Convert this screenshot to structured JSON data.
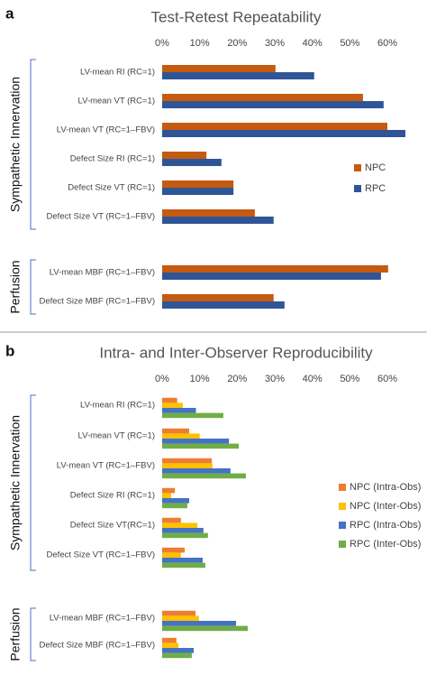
{
  "chart_data": [
    {
      "type": "hbar",
      "panel": "a",
      "title": "Test-Retest Repeatability",
      "categories": [
        "LV-mean RI (RC=1)",
        "LV-mean VT (RC=1)",
        "LV-mean VT (RC=1–FBV)",
        "Defect Size RI (RC=1)",
        "Defect Size VT (RC=1)",
        "Defect Size VT (RC=1–FBV)",
        "LV-mean MBF (RC=1–FBV)",
        "Defect Size MBF (RC=1–FBV)"
      ],
      "groups": [
        {
          "name": "Sympathetic Innervation",
          "size": 6
        },
        {
          "name": "Perfusion",
          "size": 2
        }
      ],
      "series": [
        {
          "name": "NPC",
          "color": "#c55a11",
          "values": [
            30.2,
            53.5,
            60,
            11.8,
            19,
            24.7,
            60.2,
            29.7
          ]
        },
        {
          "name": "RPC",
          "color": "#2f5597",
          "values": [
            40.5,
            59,
            64.8,
            15.8,
            19,
            29.7,
            58.3,
            32.6
          ]
        }
      ],
      "xlim": [
        0,
        66
      ],
      "xticks": [
        {
          "value": 0,
          "label": "0%"
        },
        {
          "value": 10,
          "label": "10%"
        },
        {
          "value": 20,
          "label": "20%"
        },
        {
          "value": 30,
          "label": "30%"
        },
        {
          "value": 40,
          "label": "40%"
        },
        {
          "value": 50,
          "label": "50%"
        },
        {
          "value": 60,
          "label": "60%"
        }
      ],
      "grid": false
    },
    {
      "type": "hbar",
      "panel": "b",
      "title": "Intra- and Inter-Observer Reproducibility",
      "categories": [
        "LV-mean RI (RC=1)",
        "LV-mean VT (RC=1)",
        "LV-mean VT (RC=1–FBV)",
        "Defect Size RI (RC=1)",
        "Defect Size VT(RC=1)",
        "Defect Size VT (RC=1–FBV)",
        "LV-mean MBF (RC=1–FBV)",
        "Defect Size MBF (RC=1–FBV)"
      ],
      "groups": [
        {
          "name": "Sympathetic Innervation",
          "size": 6
        },
        {
          "name": "Perfusion",
          "size": 2
        }
      ],
      "series": [
        {
          "name": "NPC (Intra-Obs)",
          "color": "#ed7d31",
          "values": [
            4,
            7.2,
            13.2,
            3.4,
            5,
            6,
            8.9,
            3.8
          ]
        },
        {
          "name": "NPC (Inter-Obs)",
          "color": "#ffc000",
          "values": [
            5.5,
            10,
            13.4,
            2.4,
            9.4,
            5,
            9.8,
            4.3
          ]
        },
        {
          "name": "RPC (Intra-Obs)",
          "color": "#4472c4",
          "values": [
            9,
            17.8,
            18.2,
            7.2,
            11,
            10.8,
            19.7,
            8.4
          ]
        },
        {
          "name": "RPC (Inter-Obs)",
          "color": "#70ad47",
          "values": [
            16.3,
            20.4,
            22.3,
            6.7,
            12.2,
            11.5,
            22.8,
            7.9
          ]
        }
      ],
      "xlim": [
        0,
        66
      ],
      "xticks": [
        {
          "value": 0,
          "label": "0%"
        },
        {
          "value": 10,
          "label": "10%"
        },
        {
          "value": 20,
          "label": "20%"
        },
        {
          "value": 30,
          "label": "30%"
        },
        {
          "value": 40,
          "label": "40%"
        },
        {
          "value": 50,
          "label": "50%"
        },
        {
          "value": 60,
          "label": "60%"
        }
      ],
      "grid": false
    }
  ]
}
